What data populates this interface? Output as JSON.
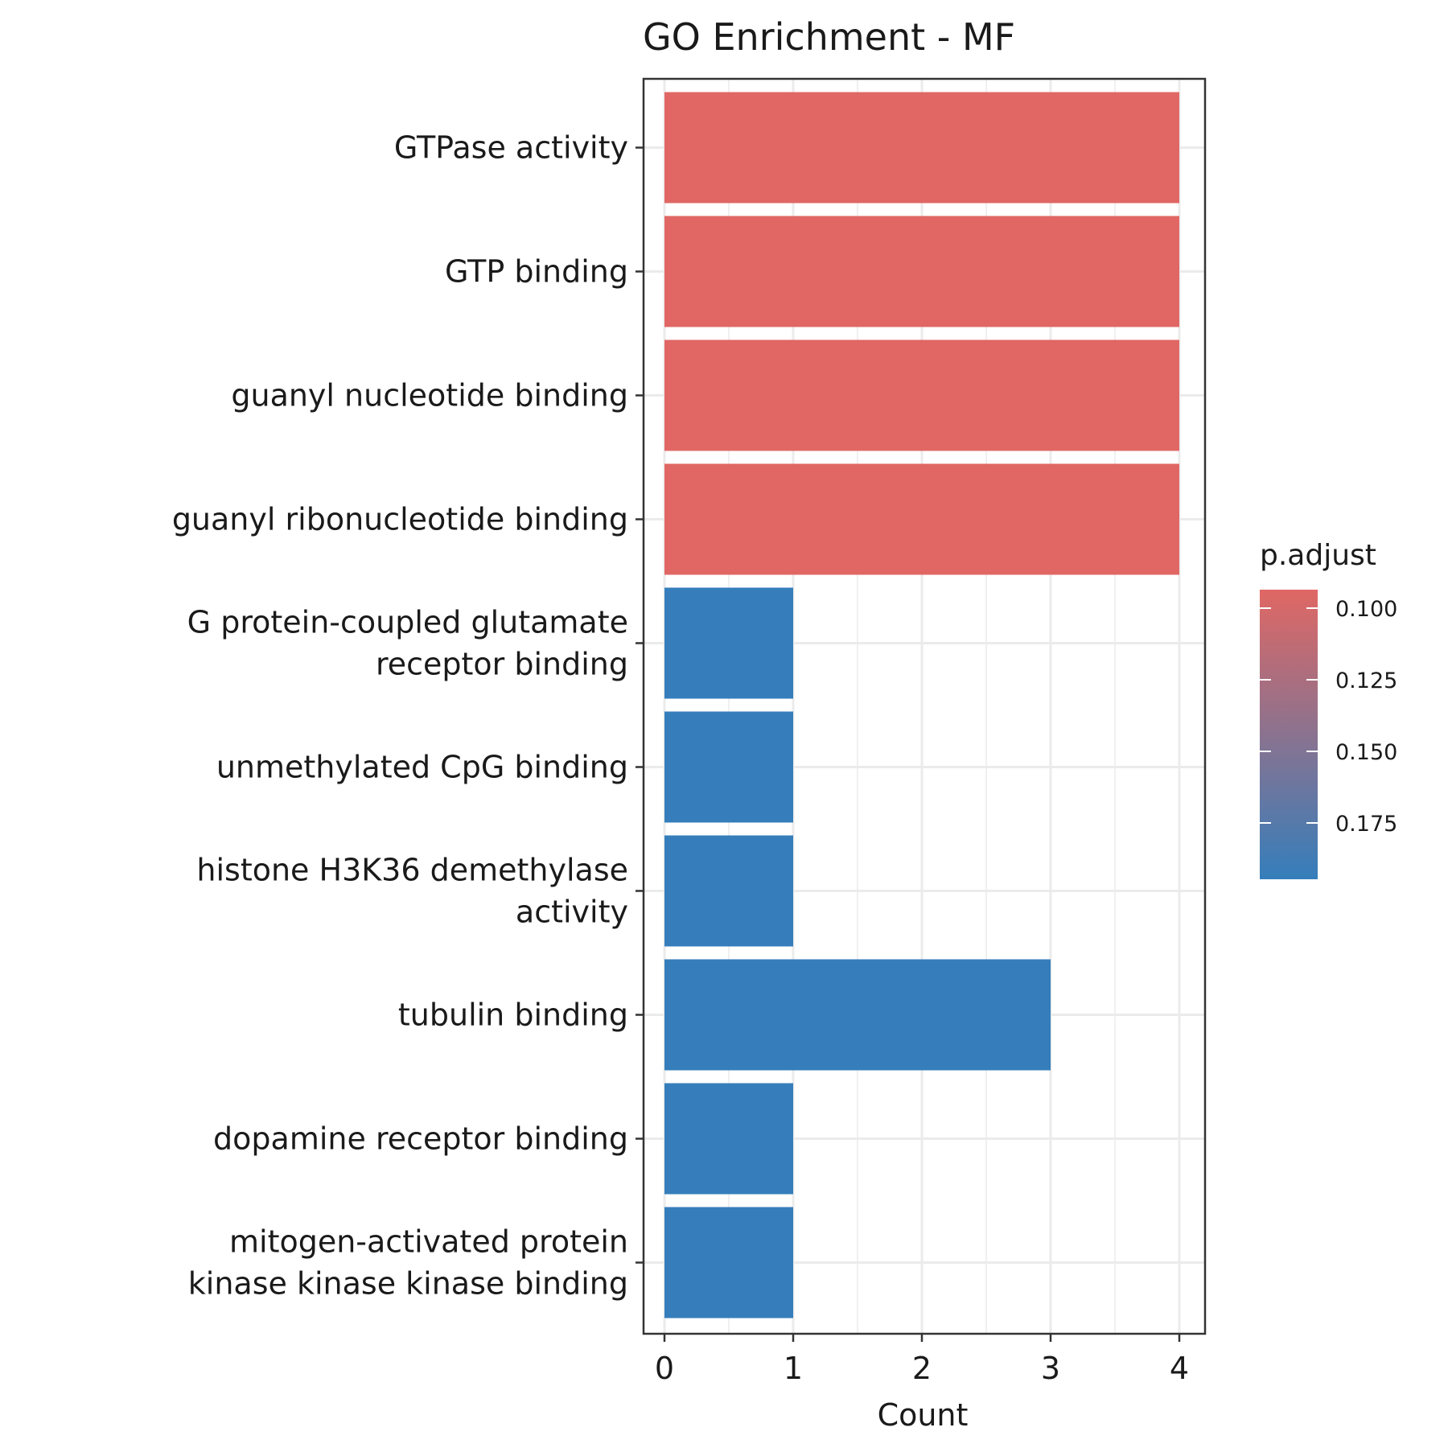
{
  "chart_data": {
    "type": "bar",
    "orientation": "horizontal",
    "title": "GO Enrichment - MF",
    "xlabel": "Count",
    "ylabel": "",
    "xlim": [
      0,
      4
    ],
    "x_ticks": [
      "0",
      "1",
      "2",
      "3",
      "4"
    ],
    "grid": true,
    "categories": [
      [
        "GTPase activity"
      ],
      [
        "GTP binding"
      ],
      [
        "guanyl nucleotide binding"
      ],
      [
        "guanyl ribonucleotide binding"
      ],
      [
        "G protein-coupled glutamate",
        "receptor binding"
      ],
      [
        "unmethylated CpG binding"
      ],
      [
        "histone H3K36 demethylase",
        "activity"
      ],
      [
        "tubulin binding"
      ],
      [
        "dopamine receptor binding"
      ],
      [
        "mitogen-activated protein",
        "kinase kinase kinase binding"
      ]
    ],
    "values": [
      4,
      4,
      4,
      4,
      1,
      1,
      1,
      3,
      1,
      1
    ],
    "bar_colors": [
      "#E06764",
      "#E06764",
      "#E06764",
      "#E06764",
      "#357EBB",
      "#357EBB",
      "#357EBB",
      "#357EBB",
      "#357EBB",
      "#357EBB"
    ],
    "legend": {
      "title": "p.adjust",
      "placement": "right",
      "labels": [
        "0.100",
        "0.125",
        "0.150",
        "0.175"
      ],
      "color_high": "#E06764",
      "color_low": "#357EBB"
    }
  }
}
